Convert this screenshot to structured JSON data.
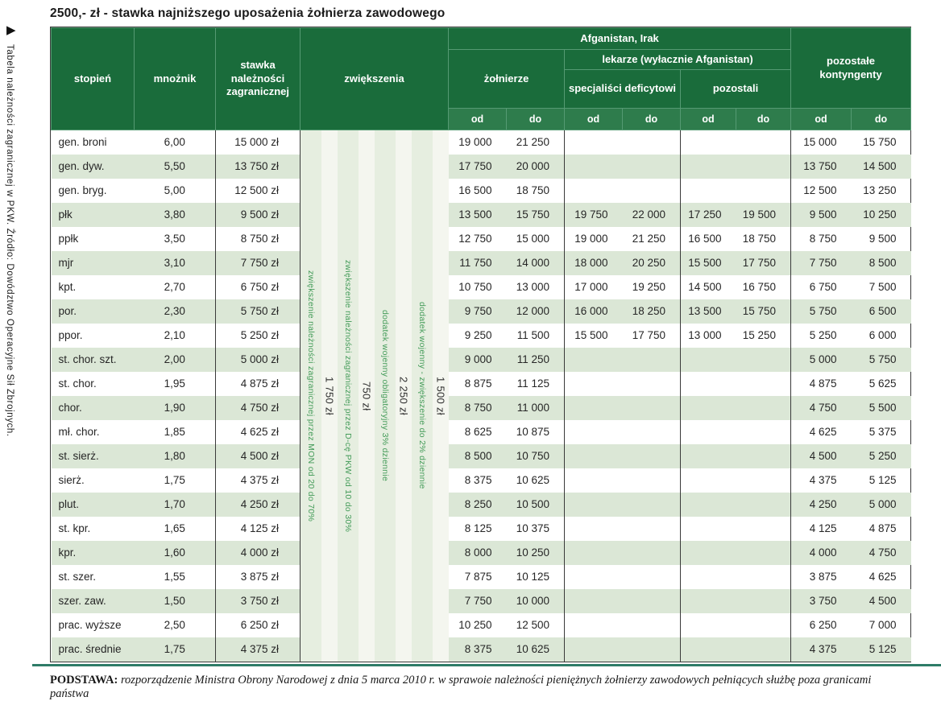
{
  "page": {
    "title": "2500,- zł - stawka najniższego uposażenia żołnierza zawodowego",
    "sidebar_caption": "Tabela należności zagranicznej w PKW. Źródło: Dowództwo Operacyjne Sił Zbrojnych.",
    "sidebar_arrow": "▶",
    "footnote": {
      "label": "PODSTAWA:",
      "text": "rozporządzenie Ministra Obrony Narodowej z dnia 5 marca 2010 r. w sprawoie należności pieniężnych żołnierzy zawodowych pełniących służbę poza granicami państwa"
    }
  },
  "table": {
    "headers": {
      "rank": "stopień",
      "multiplier": "mnożnik",
      "rate": "stawka należności zagranicznej",
      "increases": "zwiększenia",
      "afganistan_irak": "Afganistan, Irak",
      "soldiers": "żołnierze",
      "doctors": "lekarze (wyłacznie Afganistan)",
      "specialists": "specjaliści deficytowi",
      "others": "pozostali",
      "other_contingents": "pozostałe kontyngenty",
      "od": "od",
      "do": "do"
    }
  },
  "colors": {
    "header_green": "#1a6c3b",
    "subheader_green": "#2e7c4c",
    "row_stripe": "#dbe7d6",
    "strip_band": "#e6eee0",
    "strip_band_light": "#f4f6ef",
    "strip_text_green": "#439b58",
    "body_border": "#3a3a3a",
    "bottom_rule": "#2e7c67"
  },
  "chart_data": {
    "type": "table",
    "title": "2500,- zł - stawka najniższego uposażenia żołnierza zawodowego",
    "columns": [
      "stopień",
      "mnożnik",
      "stawka należności zagranicznej",
      "żołnierze od",
      "żołnierze do",
      "specjaliści deficytowi od",
      "specjaliści deficytowi do",
      "pozostali od",
      "pozostali do",
      "pozostałe kontyngenty od",
      "pozostałe kontyngenty do"
    ],
    "column_groups": [
      "Afganistan, Irak: żołnierze + lekarze (wyłacznie Afganistan)",
      "lekarze: specjaliści deficytowi + pozostali",
      "pozostałe kontyngenty"
    ],
    "increase_columns": [
      {
        "desc": "zwiększenie należności zagranicznej przez MON od 20 do 70%",
        "amount": "1 750 zł"
      },
      {
        "desc": "zwiększenie należności zagranicznej przez D-cę PKW od 10 do 30%",
        "amount": "750 zł"
      },
      {
        "desc": "dodatek wojenny obligatoryjny 3% dziennie",
        "amount": "2 250 zł"
      },
      {
        "desc": "dodatek wojenny - zwiększenie do 2% dziennie",
        "amount": "1 500 zł"
      }
    ],
    "rows": [
      [
        "gen. broni",
        "6,00",
        "15 000 zł",
        "19 000",
        "21 250",
        "",
        "",
        "",
        "",
        "15 000",
        "15 750"
      ],
      [
        "gen. dyw.",
        "5,50",
        "13 750 zł",
        "17 750",
        "20 000",
        "",
        "",
        "",
        "",
        "13 750",
        "14 500"
      ],
      [
        "gen. bryg.",
        "5,00",
        "12 500 zł",
        "16 500",
        "18 750",
        "",
        "",
        "",
        "",
        "12 500",
        "13 250"
      ],
      [
        "płk",
        "3,80",
        "9 500 zł",
        "13 500",
        "15 750",
        "19 750",
        "22 000",
        "17 250",
        "19 500",
        "9 500",
        "10 250"
      ],
      [
        "ppłk",
        "3,50",
        "8 750 zł",
        "12 750",
        "15 000",
        "19 000",
        "21 250",
        "16 500",
        "18 750",
        "8 750",
        "9 500"
      ],
      [
        "mjr",
        "3,10",
        "7 750 zł",
        "11 750",
        "14 000",
        "18 000",
        "20 250",
        "15 500",
        "17 750",
        "7 750",
        "8 500"
      ],
      [
        "kpt.",
        "2,70",
        "6 750 zł",
        "10 750",
        "13 000",
        "17 000",
        "19 250",
        "14 500",
        "16 750",
        "6 750",
        "7 500"
      ],
      [
        "por.",
        "2,30",
        "5 750 zł",
        "9 750",
        "12 000",
        "16 000",
        "18 250",
        "13 500",
        "15 750",
        "5 750",
        "6 500"
      ],
      [
        "ppor.",
        "2,10",
        "5 250 zł",
        "9 250",
        "11 500",
        "15 500",
        "17 750",
        "13 000",
        "15 250",
        "5 250",
        "6 000"
      ],
      [
        "st. chor. szt.",
        "2,00",
        "5 000 zł",
        "9 000",
        "11 250",
        "",
        "",
        "",
        "",
        "5 000",
        "5 750"
      ],
      [
        "st. chor.",
        "1,95",
        "4 875 zł",
        "8 875",
        "11 125",
        "",
        "",
        "",
        "",
        "4 875",
        "5 625"
      ],
      [
        "chor.",
        "1,90",
        "4 750 zł",
        "8 750",
        "11 000",
        "",
        "",
        "",
        "",
        "4 750",
        "5 500"
      ],
      [
        "mł. chor.",
        "1,85",
        "4 625 zł",
        "8 625",
        "10 875",
        "",
        "",
        "",
        "",
        "4 625",
        "5 375"
      ],
      [
        "st. sierż.",
        "1,80",
        "4 500 zł",
        "8 500",
        "10 750",
        "",
        "",
        "",
        "",
        "4 500",
        "5 250"
      ],
      [
        "sierż.",
        "1,75",
        "4 375 zł",
        "8 375",
        "10 625",
        "",
        "",
        "",
        "",
        "4 375",
        "5 125"
      ],
      [
        "plut.",
        "1,70",
        "4 250 zł",
        "8 250",
        "10 500",
        "",
        "",
        "",
        "",
        "4 250",
        "5 000"
      ],
      [
        "st. kpr.",
        "1,65",
        "4 125 zł",
        "8 125",
        "10 375",
        "",
        "",
        "",
        "",
        "4 125",
        "4 875"
      ],
      [
        "kpr.",
        "1,60",
        "4 000 zł",
        "8 000",
        "10 250",
        "",
        "",
        "",
        "",
        "4 000",
        "4 750"
      ],
      [
        "st. szer.",
        "1,55",
        "3 875 zł",
        "7 875",
        "10 125",
        "",
        "",
        "",
        "",
        "3 875",
        "4 625"
      ],
      [
        "szer. zaw.",
        "1,50",
        "3 750 zł",
        "7 750",
        "10 000",
        "",
        "",
        "",
        "",
        "3 750",
        "4 500"
      ],
      [
        "prac. wyższe",
        "2,50",
        "6 250 zł",
        "10 250",
        "12 500",
        "",
        "",
        "",
        "",
        "6 250",
        "7 000"
      ],
      [
        "prac. średnie",
        "1,75",
        "4 375 zł",
        "8 375",
        "10 625",
        "",
        "",
        "",
        "",
        "4 375",
        "5 125"
      ]
    ]
  }
}
